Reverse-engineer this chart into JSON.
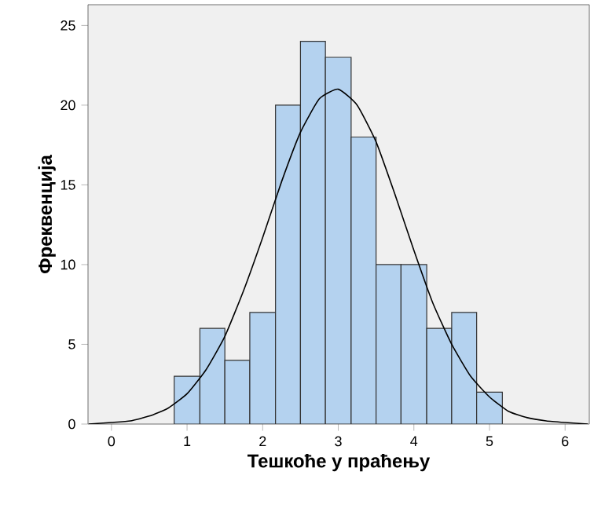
{
  "chart_data": {
    "type": "histogram",
    "xlabel": "Тешкоће у праћењу",
    "ylabel": "Фреквенција",
    "bins": [
      0.83,
      1.17,
      1.5,
      1.83,
      2.17,
      2.5,
      2.83,
      3.17,
      3.5,
      3.83,
      4.17,
      4.5,
      4.83,
      5.17
    ],
    "values": [
      3,
      6,
      4,
      7,
      20,
      24,
      23,
      18,
      10,
      10,
      6,
      7,
      2
    ],
    "color": "#b4d2ef",
    "series": [
      {
        "type": "line",
        "color": "#000000",
        "x": [
          -0.3,
          0,
          0.25,
          0.5,
          0.75,
          1,
          1.25,
          1.5,
          1.75,
          2,
          2.25,
          2.5,
          2.75,
          3,
          3.25,
          3.5,
          3.75,
          4,
          4.25,
          4.5,
          4.75,
          5,
          5.25,
          5.5,
          5.75,
          6,
          6.3
        ],
        "values": [
          0,
          0.1,
          0.2,
          0.5,
          1,
          1.9,
          3.4,
          5.5,
          8.4,
          11.7,
          15.2,
          18.3,
          20.4,
          21,
          20,
          17.7,
          14.4,
          10.9,
          7.6,
          5,
          3,
          1.7,
          0.8,
          0.4,
          0.2,
          0.1,
          0
        ]
      }
    ],
    "xlim": [
      -0.31,
      6.32
    ],
    "ylim": [
      0,
      26.3
    ],
    "xticks": [
      0,
      1,
      2,
      3,
      4,
      5,
      6
    ],
    "yticks": [
      0,
      5,
      10,
      15,
      20,
      25
    ],
    "grid": false
  }
}
